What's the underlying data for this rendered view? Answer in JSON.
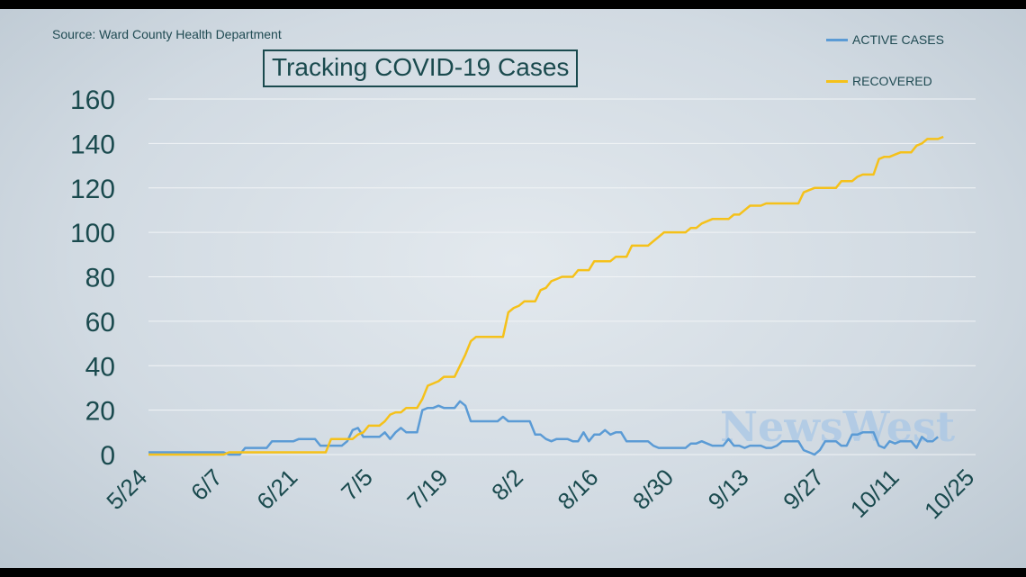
{
  "source": "Source: Ward County Health Department",
  "title": "Tracking COVID-19 Cases",
  "watermark": "NewsWest",
  "colors": {
    "active": "#5b9bd5",
    "recovered": "#f5c11a",
    "text": "#1a4a4e"
  },
  "chart_data": {
    "type": "line",
    "title": "Tracking COVID-19 Cases",
    "xlabel": "",
    "ylabel": "",
    "ylim": [
      0,
      160
    ],
    "yticks": [
      0,
      20,
      40,
      60,
      80,
      100,
      120,
      140,
      160
    ],
    "xlim": [
      "5/24",
      "10/25"
    ],
    "xticks": [
      "5/24",
      "6/7",
      "6/21",
      "7/5",
      "7/19",
      "8/2",
      "8/16",
      "8/30",
      "9/13",
      "9/27",
      "10/11",
      "10/25"
    ],
    "grid": true,
    "legend_position": "top-right",
    "series": [
      {
        "name": "ACTIVE CASES",
        "color": "#5b9bd5",
        "points": [
          [
            "5/24",
            1
          ],
          [
            "6/7",
            1
          ],
          [
            "6/8",
            0
          ],
          [
            "6/10",
            0
          ],
          [
            "6/11",
            3
          ],
          [
            "6/15",
            3
          ],
          [
            "6/16",
            6
          ],
          [
            "6/20",
            6
          ],
          [
            "6/21",
            7
          ],
          [
            "6/24",
            7
          ],
          [
            "6/25",
            4
          ],
          [
            "6/29",
            4
          ],
          [
            "6/30",
            6
          ],
          [
            "7/1",
            11
          ],
          [
            "7/2",
            12
          ],
          [
            "7/3",
            8
          ],
          [
            "7/6",
            8
          ],
          [
            "7/7",
            10
          ],
          [
            "7/8",
            7
          ],
          [
            "7/9",
            10
          ],
          [
            "7/10",
            12
          ],
          [
            "7/11",
            10
          ],
          [
            "7/13",
            10
          ],
          [
            "7/14",
            20
          ],
          [
            "7/15",
            21
          ],
          [
            "7/16",
            21
          ],
          [
            "7/17",
            22
          ],
          [
            "7/18",
            21
          ],
          [
            "7/20",
            21
          ],
          [
            "7/21",
            24
          ],
          [
            "7/22",
            22
          ],
          [
            "7/23",
            15
          ],
          [
            "7/28",
            15
          ],
          [
            "7/29",
            17
          ],
          [
            "7/30",
            15
          ],
          [
            "8/3",
            15
          ],
          [
            "8/4",
            9
          ],
          [
            "8/5",
            9
          ],
          [
            "8/6",
            7
          ],
          [
            "8/7",
            6
          ],
          [
            "8/8",
            7
          ],
          [
            "8/10",
            7
          ],
          [
            "8/11",
            6
          ],
          [
            "8/12",
            6
          ],
          [
            "8/13",
            10
          ],
          [
            "8/14",
            6
          ],
          [
            "8/15",
            9
          ],
          [
            "8/16",
            9
          ],
          [
            "8/17",
            11
          ],
          [
            "8/18",
            9
          ],
          [
            "8/19",
            10
          ],
          [
            "8/20",
            10
          ],
          [
            "8/21",
            6
          ],
          [
            "8/25",
            6
          ],
          [
            "8/26",
            4
          ],
          [
            "8/27",
            3
          ],
          [
            "9/1",
            3
          ],
          [
            "9/2",
            5
          ],
          [
            "9/3",
            5
          ],
          [
            "9/4",
            6
          ],
          [
            "9/5",
            5
          ],
          [
            "9/6",
            4
          ],
          [
            "9/8",
            4
          ],
          [
            "9/9",
            7
          ],
          [
            "9/10",
            4
          ],
          [
            "9/11",
            4
          ],
          [
            "9/12",
            3
          ],
          [
            "9/13",
            4
          ],
          [
            "9/15",
            4
          ],
          [
            "9/16",
            3
          ],
          [
            "9/17",
            3
          ],
          [
            "9/18",
            4
          ],
          [
            "9/19",
            6
          ],
          [
            "9/22",
            6
          ],
          [
            "9/23",
            2
          ],
          [
            "9/24",
            1
          ],
          [
            "9/25",
            0
          ],
          [
            "9/26",
            2
          ],
          [
            "9/27",
            6
          ],
          [
            "9/29",
            6
          ],
          [
            "9/30",
            4
          ],
          [
            "10/1",
            4
          ],
          [
            "10/2",
            9
          ],
          [
            "10/3",
            9
          ],
          [
            "10/4",
            10
          ],
          [
            "10/6",
            10
          ],
          [
            "10/7",
            4
          ],
          [
            "10/8",
            3
          ],
          [
            "10/9",
            6
          ],
          [
            "10/10",
            5
          ],
          [
            "10/11",
            6
          ],
          [
            "10/13",
            6
          ],
          [
            "10/14",
            3
          ],
          [
            "10/15",
            8
          ],
          [
            "10/16",
            6
          ],
          [
            "10/17",
            6
          ],
          [
            "10/18",
            8
          ]
        ]
      },
      {
        "name": "RECOVERED",
        "color": "#f5c11a",
        "points": [
          [
            "5/24",
            0
          ],
          [
            "6/7",
            0
          ],
          [
            "6/8",
            1
          ],
          [
            "6/26",
            1
          ],
          [
            "6/27",
            7
          ],
          [
            "7/1",
            7
          ],
          [
            "7/2",
            9
          ],
          [
            "7/3",
            10
          ],
          [
            "7/4",
            13
          ],
          [
            "7/6",
            13
          ],
          [
            "7/7",
            15
          ],
          [
            "7/8",
            18
          ],
          [
            "7/9",
            19
          ],
          [
            "7/10",
            19
          ],
          [
            "7/11",
            21
          ],
          [
            "7/13",
            21
          ],
          [
            "7/14",
            25
          ],
          [
            "7/15",
            31
          ],
          [
            "7/16",
            32
          ],
          [
            "7/17",
            33
          ],
          [
            "7/18",
            35
          ],
          [
            "7/20",
            35
          ],
          [
            "7/21",
            40
          ],
          [
            "7/22",
            45
          ],
          [
            "7/23",
            51
          ],
          [
            "7/24",
            53
          ],
          [
            "7/29",
            53
          ],
          [
            "7/30",
            64
          ],
          [
            "7/31",
            66
          ],
          [
            "8/1",
            67
          ],
          [
            "8/2",
            69
          ],
          [
            "8/4",
            69
          ],
          [
            "8/5",
            74
          ],
          [
            "8/6",
            75
          ],
          [
            "8/7",
            78
          ],
          [
            "8/8",
            79
          ],
          [
            "8/9",
            80
          ],
          [
            "8/11",
            80
          ],
          [
            "8/12",
            83
          ],
          [
            "8/14",
            83
          ],
          [
            "8/15",
            87
          ],
          [
            "8/18",
            87
          ],
          [
            "8/19",
            89
          ],
          [
            "8/21",
            89
          ],
          [
            "8/22",
            94
          ],
          [
            "8/25",
            94
          ],
          [
            "8/26",
            96
          ],
          [
            "8/27",
            98
          ],
          [
            "8/28",
            100
          ],
          [
            "9/1",
            100
          ],
          [
            "9/2",
            102
          ],
          [
            "9/3",
            102
          ],
          [
            "9/4",
            104
          ],
          [
            "9/5",
            105
          ],
          [
            "9/6",
            106
          ],
          [
            "9/9",
            106
          ],
          [
            "9/10",
            108
          ],
          [
            "9/11",
            108
          ],
          [
            "9/12",
            110
          ],
          [
            "9/13",
            112
          ],
          [
            "9/15",
            112
          ],
          [
            "9/16",
            113
          ],
          [
            "9/22",
            113
          ],
          [
            "9/23",
            118
          ],
          [
            "9/24",
            119
          ],
          [
            "9/25",
            120
          ],
          [
            "9/29",
            120
          ],
          [
            "9/30",
            123
          ],
          [
            "10/2",
            123
          ],
          [
            "10/3",
            125
          ],
          [
            "10/4",
            126
          ],
          [
            "10/6",
            126
          ],
          [
            "10/7",
            133
          ],
          [
            "10/8",
            134
          ],
          [
            "10/9",
            134
          ],
          [
            "10/10",
            135
          ],
          [
            "10/11",
            136
          ],
          [
            "10/13",
            136
          ],
          [
            "10/14",
            139
          ],
          [
            "10/15",
            140
          ],
          [
            "10/16",
            142
          ],
          [
            "10/18",
            142
          ],
          [
            "10/19",
            143
          ]
        ]
      }
    ]
  }
}
